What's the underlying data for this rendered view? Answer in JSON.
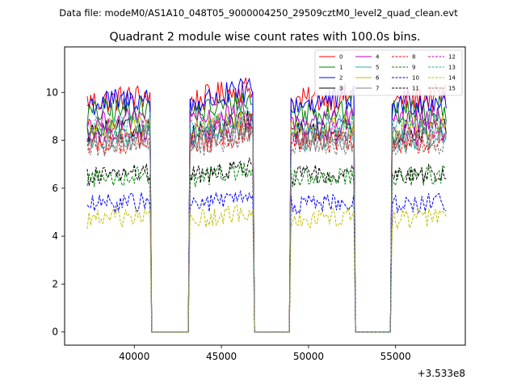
{
  "chart_data": {
    "type": "line",
    "suptitle": "Data file: modeM0/AS1A10_048T05_9000004250_29509cztM0_level2_quad_clean.evt",
    "title": "Quadrant 2 module wise count rates with 100.0s bins.",
    "xlabel": "",
    "ylabel": "",
    "x_offset_label": "+3.533e8",
    "xlim": [
      36000,
      59000
    ],
    "ylim": [
      -0.55,
      11.9
    ],
    "xticks": [
      40000,
      45000,
      50000,
      55000
    ],
    "yticks": [
      0,
      2,
      4,
      6,
      8,
      10
    ],
    "xtick_labels": [
      "40000",
      "45000",
      "50000",
      "55000"
    ],
    "ytick_labels": [
      "0",
      "2",
      "4",
      "6",
      "8",
      "10"
    ],
    "legend_position": "upper-right",
    "bin_width_s": 100,
    "x_start": 37300,
    "x_step": 100,
    "n_bins": 207,
    "good_time_intervals": [
      [
        37300,
        40900
      ],
      [
        43200,
        46800
      ],
      [
        49000,
        52600
      ],
      [
        54800,
        58000
      ]
    ],
    "series": [
      {
        "name": "0",
        "color": "#ff0000",
        "dash": "solid",
        "mean": 9.6,
        "noise": 0.35
      },
      {
        "name": "1",
        "color": "#008000",
        "dash": "solid",
        "mean": 9.1,
        "noise": 0.35
      },
      {
        "name": "2",
        "color": "#0000ff",
        "dash": "solid",
        "mean": 9.5,
        "noise": 0.35
      },
      {
        "name": "3",
        "color": "#000000",
        "dash": "solid",
        "mean": 8.3,
        "noise": 0.3
      },
      {
        "name": "4",
        "color": "#bf00bf",
        "dash": "solid",
        "mean": 8.7,
        "noise": 0.3
      },
      {
        "name": "5",
        "color": "#20b2aa",
        "dash": "solid",
        "mean": 8.0,
        "noise": 0.3
      },
      {
        "name": "6",
        "color": "#bfbf00",
        "dash": "solid",
        "mean": 8.4,
        "noise": 0.3
      },
      {
        "name": "7",
        "color": "#808080",
        "dash": "solid",
        "mean": 7.9,
        "noise": 0.3
      },
      {
        "name": "8",
        "color": "#ff0000",
        "dash": "dashed",
        "mean": 7.8,
        "noise": 0.3
      },
      {
        "name": "9",
        "color": "#008000",
        "dash": "dashed",
        "mean": 6.4,
        "noise": 0.25
      },
      {
        "name": "10",
        "color": "#0000ff",
        "dash": "dashed",
        "mean": 5.3,
        "noise": 0.25
      },
      {
        "name": "11",
        "color": "#000000",
        "dash": "dashed",
        "mean": 6.5,
        "noise": 0.25
      },
      {
        "name": "12",
        "color": "#bf00bf",
        "dash": "dashed",
        "mean": 8.2,
        "noise": 0.3
      },
      {
        "name": "13",
        "color": "#20b2aa",
        "dash": "dashed",
        "mean": 8.5,
        "noise": 0.3
      },
      {
        "name": "14",
        "color": "#bfbf00",
        "dash": "dashed",
        "mean": 4.7,
        "noise": 0.25
      },
      {
        "name": "15",
        "color": "#808080",
        "dash": "dashed",
        "mean": 7.7,
        "noise": 0.3
      }
    ]
  }
}
